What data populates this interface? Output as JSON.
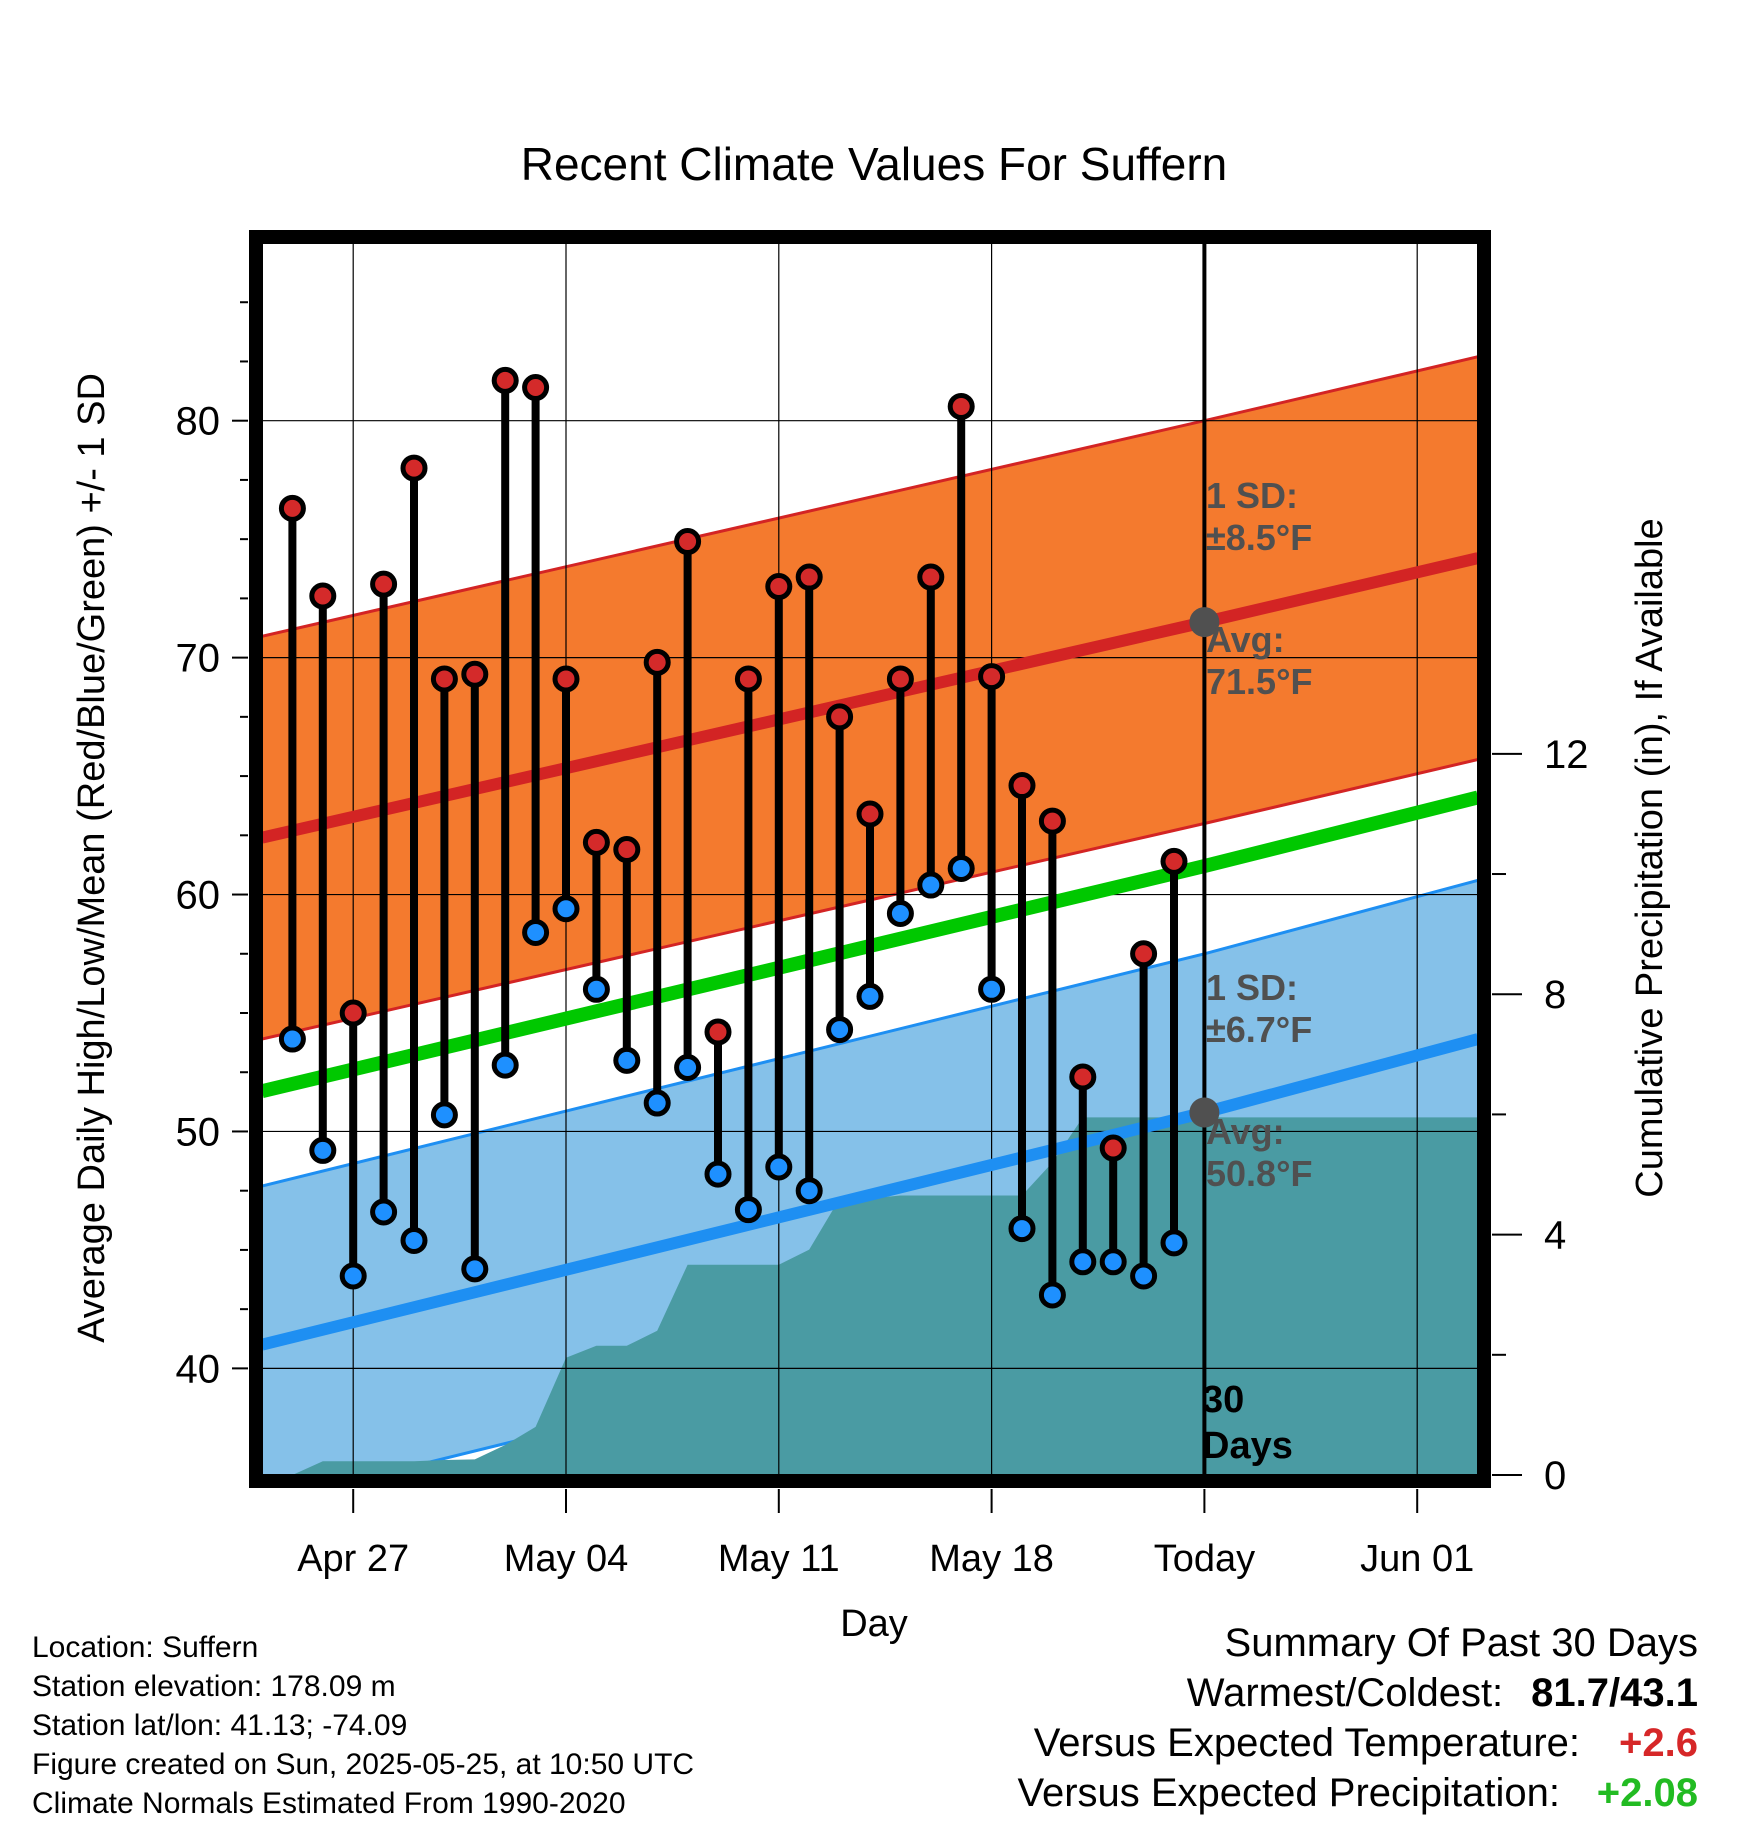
{
  "colors": {
    "high_marker": "#d42a2a",
    "low_marker": "#1e90ff",
    "high_band": "#f47a2e",
    "high_line": "#d32424",
    "low_band": "#85c1e9",
    "low_line": "#1e8ff2",
    "mean_line": "#00c800",
    "precip_fill": "#4a9ba3",
    "annotation_gray": "#505050",
    "frame": "#000000"
  },
  "chart_data": {
    "type": "line",
    "title": "Recent Climate Values For Suffern",
    "xlabel": "Day",
    "ylabel_left": "Average Daily High/Low/Mean (Red/Blue/Green) +/- 1 SD",
    "ylabel_right": "Cumulative Precipitation (in), If Available",
    "ylim_left": [
      35.5,
      87.5
    ],
    "ylim_right": [
      0,
      20.5
    ],
    "x_tick_labels": [
      "Apr 27",
      "May 04",
      "May 11",
      "May 18",
      "Today",
      "Jun 01"
    ],
    "x_tick_dates": [
      "2025-04-27",
      "2025-05-04",
      "2025-05-11",
      "2025-05-18",
      "2025-05-25",
      "2025-06-01"
    ],
    "x_range": [
      "2025-04-24",
      "2025-06-03"
    ],
    "y_ticks_left": [
      40,
      50,
      60,
      70,
      80
    ],
    "y_ticks_right": [
      0,
      4,
      8,
      12
    ],
    "today": "2025-05-25",
    "normals": {
      "dates": [
        "2025-04-24",
        "2025-05-25",
        "2025-06-03"
      ],
      "high_avg": [
        62.4,
        71.5,
        74.2
      ],
      "low_avg": [
        41.0,
        50.8,
        53.9
      ],
      "mean_avg": [
        51.7,
        61.2,
        64.1
      ],
      "high_sd": 8.5,
      "low_sd": 6.7
    },
    "annotations": {
      "high_sd": [
        "1 SD:",
        "±8.5°F"
      ],
      "high_avg": [
        "Avg:",
        "71.5°F"
      ],
      "low_sd": [
        "1 SD:",
        "±6.7°F"
      ],
      "low_avg": [
        "Avg:",
        "50.8°F"
      ],
      "period": [
        "30",
        "Days"
      ]
    },
    "series": [
      {
        "name": "High",
        "x": [
          "2025-04-25",
          "2025-04-26",
          "2025-04-27",
          "2025-04-28",
          "2025-04-29",
          "2025-04-30",
          "2025-05-01",
          "2025-05-02",
          "2025-05-03",
          "2025-05-04",
          "2025-05-05",
          "2025-05-06",
          "2025-05-07",
          "2025-05-08",
          "2025-05-09",
          "2025-05-10",
          "2025-05-11",
          "2025-05-12",
          "2025-05-13",
          "2025-05-14",
          "2025-05-15",
          "2025-05-16",
          "2025-05-17",
          "2025-05-18",
          "2025-05-19",
          "2025-05-20",
          "2025-05-21",
          "2025-05-22",
          "2025-05-23",
          "2025-05-24"
        ],
        "values": [
          76.3,
          72.6,
          55.0,
          73.1,
          78.0,
          69.1,
          69.3,
          81.7,
          81.4,
          69.1,
          62.2,
          61.9,
          69.8,
          74.9,
          54.2,
          69.1,
          73.0,
          73.4,
          67.5,
          63.4,
          69.1,
          73.4,
          80.6,
          69.2,
          64.6,
          63.1,
          52.3,
          49.3,
          57.5,
          61.4
        ]
      },
      {
        "name": "Low",
        "x": [
          "2025-04-25",
          "2025-04-26",
          "2025-04-27",
          "2025-04-28",
          "2025-04-29",
          "2025-04-30",
          "2025-05-01",
          "2025-05-02",
          "2025-05-03",
          "2025-05-04",
          "2025-05-05",
          "2025-05-06",
          "2025-05-07",
          "2025-05-08",
          "2025-05-09",
          "2025-05-10",
          "2025-05-11",
          "2025-05-12",
          "2025-05-13",
          "2025-05-14",
          "2025-05-15",
          "2025-05-16",
          "2025-05-17",
          "2025-05-18",
          "2025-05-19",
          "2025-05-20",
          "2025-05-21",
          "2025-05-22",
          "2025-05-23",
          "2025-05-24"
        ],
        "values": [
          53.9,
          49.2,
          43.9,
          46.6,
          45.4,
          50.7,
          44.2,
          52.8,
          58.4,
          59.4,
          56.0,
          53.0,
          51.2,
          52.7,
          48.2,
          46.7,
          48.5,
          47.5,
          54.3,
          55.7,
          59.2,
          60.4,
          61.1,
          56.0,
          45.9,
          43.1,
          44.5,
          44.5,
          43.9,
          45.3
        ]
      }
    ],
    "precip": {
      "x": [
        "2025-04-24",
        "2025-04-25",
        "2025-04-26",
        "2025-04-27",
        "2025-04-28",
        "2025-04-29",
        "2025-04-30",
        "2025-05-01",
        "2025-05-02",
        "2025-05-03",
        "2025-05-04",
        "2025-05-05",
        "2025-05-06",
        "2025-05-07",
        "2025-05-08",
        "2025-05-09",
        "2025-05-10",
        "2025-05-11",
        "2025-05-12",
        "2025-05-13",
        "2025-05-14",
        "2025-05-15",
        "2025-05-16",
        "2025-05-17",
        "2025-05-18",
        "2025-05-19",
        "2025-05-20",
        "2025-05-21",
        "2025-05-22",
        "2025-05-23",
        "2025-05-24",
        "2025-05-25",
        "2025-06-03"
      ],
      "values": [
        0,
        0,
        0.23,
        0.23,
        0.23,
        0.23,
        0.25,
        0.26,
        0.5,
        0.8,
        1.95,
        2.15,
        2.15,
        2.4,
        3.5,
        3.5,
        3.5,
        3.5,
        3.75,
        4.6,
        4.6,
        4.65,
        4.65,
        4.65,
        4.65,
        4.65,
        5.2,
        5.95,
        5.95,
        5.95,
        5.95,
        5.95,
        5.95
      ]
    }
  },
  "footer": {
    "location": "Location: Suffern",
    "elevation": "Station elevation: 178.09 m",
    "latlon": "Station lat/lon: 41.13; -74.09",
    "created": "Figure created on Sun, 2025-05-25, at 10:50 UTC",
    "normals": "Climate Normals Estimated From 1990-2020"
  },
  "summary": {
    "title": "Summary Of Past 30 Days",
    "warmest_label": "Warmest/Coldest:",
    "warmest_value": "81.7/43.1",
    "temp_label": "Versus Expected Temperature:",
    "temp_value": "+2.6",
    "precip_label": "Versus Expected Precipitation:",
    "precip_value": "+2.08"
  }
}
